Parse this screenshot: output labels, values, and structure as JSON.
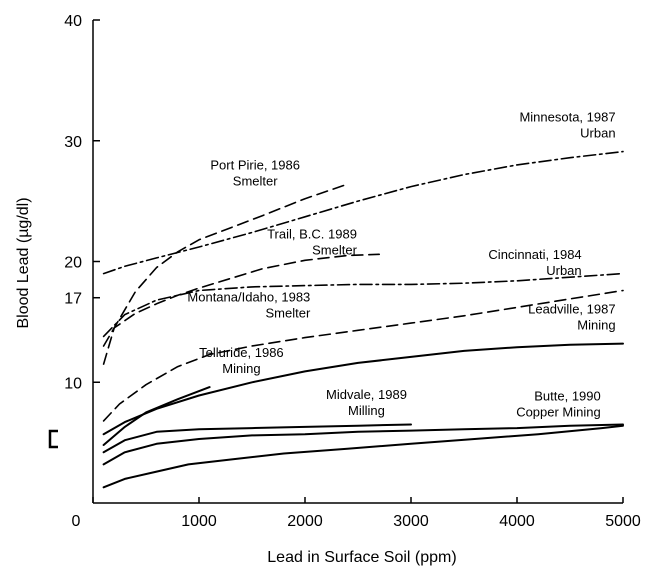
{
  "chart_data": {
    "type": "line",
    "xlabel": "Lead in Surface Soil (ppm)",
    "ylabel": "Blood Lead (µg/dl)",
    "xlim": [
      0,
      5000
    ],
    "ylim": [
      0,
      40
    ],
    "x_ticks": [
      {
        "value": 0,
        "label": "0"
      },
      {
        "value": 1000,
        "label": "1000"
      },
      {
        "value": 2000,
        "label": "2000"
      },
      {
        "value": 3000,
        "label": "3000"
      },
      {
        "value": 4000,
        "label": "4000"
      },
      {
        "value": 5000,
        "label": "5000"
      }
    ],
    "y_ticks": [
      {
        "value": 10,
        "label": "10"
      },
      {
        "value": 17,
        "label": "17"
      },
      {
        "value": 20,
        "label": "20"
      },
      {
        "value": 30,
        "label": "30"
      },
      {
        "value": 40,
        "label": "40"
      }
    ],
    "grid": false,
    "series": [
      {
        "name": "Port Pirie, 1986",
        "subtitle": "Smelter",
        "style": "dashed",
        "x": [
          100,
          200,
          400,
          600,
          800,
          1000,
          1300,
          1600,
          2000,
          2400
        ],
        "y": [
          11.5,
          14.5,
          17.5,
          19.5,
          20.8,
          21.8,
          22.8,
          23.8,
          25.2,
          26.4
        ]
      },
      {
        "name": "Minnesota, 1987",
        "subtitle": "Urban",
        "style": "dashdot",
        "x": [
          100,
          300,
          600,
          1000,
          1500,
          2000,
          2500,
          3000,
          3500,
          4000,
          4500,
          5000
        ],
        "y": [
          19.0,
          19.6,
          20.3,
          21.2,
          22.4,
          23.7,
          25.0,
          26.2,
          27.2,
          28.0,
          28.6,
          29.1
        ]
      },
      {
        "name": "Trail, B.C. 1989",
        "subtitle": "Smelter",
        "style": "dashed",
        "x": [
          100,
          200,
          400,
          600,
          800,
          1000,
          1300,
          1600,
          2000,
          2400,
          2700
        ],
        "y": [
          13.0,
          14.5,
          15.7,
          16.5,
          17.2,
          17.8,
          18.6,
          19.4,
          20.1,
          20.5,
          20.6
        ]
      },
      {
        "name": "Cincinnati, 1984",
        "subtitle": "Urban",
        "style": "dashdot",
        "x": [
          100,
          300,
          600,
          1000,
          1500,
          2000,
          2500,
          3000,
          3500,
          4000,
          4500,
          5000
        ],
        "y": [
          13.8,
          15.6,
          16.8,
          17.6,
          17.9,
          18.0,
          18.1,
          18.1,
          18.2,
          18.4,
          18.7,
          19.0
        ]
      },
      {
        "name": "Montana/Idaho, 1983",
        "subtitle": "Smelter",
        "style": "dashed",
        "x": [
          100,
          250,
          500,
          800,
          1100,
          1500,
          2000,
          2500,
          3000,
          3500,
          4000,
          4500,
          5000
        ],
        "y": [
          6.8,
          8.2,
          9.8,
          11.3,
          12.3,
          13.0,
          13.7,
          14.3,
          14.9,
          15.5,
          16.2,
          16.9,
          17.6
        ]
      },
      {
        "name": "Leadville, 1987",
        "subtitle": "Mining",
        "style": "solid",
        "x": [
          100,
          300,
          600,
          1000,
          1500,
          2000,
          2500,
          3000,
          3500,
          4000,
          4500,
          5000
        ],
        "y": [
          5.7,
          6.7,
          7.8,
          8.9,
          10.0,
          10.9,
          11.6,
          12.1,
          12.6,
          12.9,
          13.1,
          13.2
        ]
      },
      {
        "name": "Telluride, 1986",
        "subtitle": "Mining",
        "style": "solid",
        "x": [
          100,
          300,
          500,
          800,
          1100
        ],
        "y": [
          4.8,
          6.3,
          7.5,
          8.6,
          9.6
        ]
      },
      {
        "name": "Midvale, 1989",
        "subtitle": "Milling",
        "style": "solid",
        "x": [
          100,
          300,
          600,
          1000,
          1500,
          2000,
          2500,
          3000
        ],
        "y": [
          4.2,
          5.2,
          5.9,
          6.1,
          6.2,
          6.3,
          6.4,
          6.5
        ]
      },
      {
        "name": "Butte, 1990",
        "subtitle": "Copper Mining",
        "style": "solid",
        "x": [
          100,
          300,
          600,
          1000,
          1500,
          2000,
          2500,
          3000,
          3500,
          4000,
          4500,
          5000
        ],
        "y": [
          3.2,
          4.2,
          4.9,
          5.3,
          5.6,
          5.7,
          5.9,
          6.0,
          6.1,
          6.2,
          6.4,
          6.5
        ]
      },
      {
        "name": "",
        "subtitle": "",
        "style": "solid",
        "x": [
          100,
          300,
          600,
          900,
          1300,
          1800,
          2400,
          3000,
          3600,
          4200,
          4800,
          5000
        ],
        "y": [
          1.3,
          2.0,
          2.6,
          3.2,
          3.6,
          4.1,
          4.5,
          4.9,
          5.3,
          5.7,
          6.2,
          6.4
        ]
      }
    ],
    "annotations": [
      {
        "lines": [
          "Port Pirie, 1986",
          "Smelter"
        ],
        "x": 1530,
        "y": 27.6,
        "anchor": "middle"
      },
      {
        "lines": [
          "Minnesota, 1987",
          "Urban"
        ],
        "x": 4930,
        "y": 31.6,
        "anchor": "end"
      },
      {
        "lines": [
          "Trail, B.C. 1989",
          "Smelter"
        ],
        "x": 2490,
        "y": 21.9,
        "anchor": "end"
      },
      {
        "lines": [
          "Cincinnati, 1984",
          "Urban"
        ],
        "x": 4610,
        "y": 20.2,
        "anchor": "end"
      },
      {
        "lines": [
          "Montana/Idaho, 1983",
          "Smelter"
        ],
        "x": 2050,
        "y": 16.7,
        "anchor": "end"
      },
      {
        "lines": [
          "Leadville, 1987",
          "Mining"
        ],
        "x": 4930,
        "y": 15.7,
        "anchor": "end"
      },
      {
        "lines": [
          "Telluride, 1986",
          "Mining"
        ],
        "x": 1400,
        "y": 12.1,
        "anchor": "middle"
      },
      {
        "lines": [
          "Midvale, 1989",
          "Milling"
        ],
        "x": 2580,
        "y": 8.6,
        "anchor": "middle"
      },
      {
        "lines": [
          "Butte, 1990",
          "Copper Mining"
        ],
        "x": 4790,
        "y": 8.5,
        "anchor": "end"
      }
    ],
    "bracket_marker_y": 5.3
  }
}
